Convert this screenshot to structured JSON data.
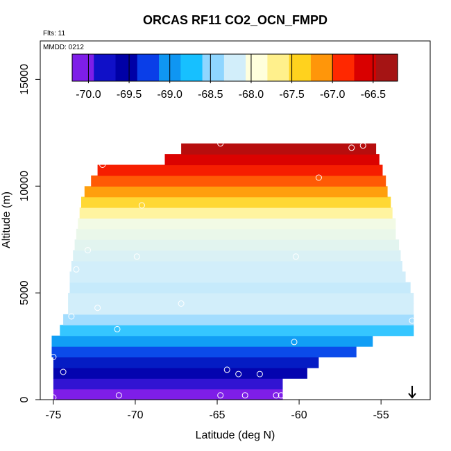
{
  "chart_data": {
    "type": "heatmap",
    "title": "ORCAS RF11 CO2_OCN_FMPD",
    "flights_label": "Flts: 11",
    "date_label": "MMDD: 0212",
    "xlabel": "Latitude (deg N)",
    "ylabel": "Altitude (m)",
    "xlim": [
      -75.8,
      -52.0
    ],
    "ylim": [
      0,
      16800
    ],
    "x_ticks": [
      -75,
      -70,
      -65,
      -60,
      -55
    ],
    "x_tick_labels": [
      "-75",
      "-70",
      "-65",
      "-60",
      "-55"
    ],
    "y_ticks": [
      0,
      5000,
      10000,
      15000
    ],
    "y_tick_labels": [
      "0",
      "5000",
      "10000",
      "15000"
    ],
    "colorbar": {
      "min": -70.2,
      "max": -66.2,
      "ticks": [
        -70.0,
        -69.5,
        -69.0,
        -68.5,
        -68.0,
        -67.5,
        -67.0,
        -66.5
      ],
      "tick_labels": [
        "-70.0",
        "-69.5",
        "-69.0",
        "-68.5",
        "-68.0",
        "-67.5",
        "-67.0",
        "-66.5"
      ],
      "colors": [
        "#7e1ee8",
        "#1010c8",
        "#0000a6",
        "#0a3ee8",
        "#0f96f2",
        "#17c0ff",
        "#8fd6ff",
        "#d2eefa",
        "#ffffdc",
        "#fff08c",
        "#ffd21e",
        "#ff960a",
        "#ff2800",
        "#d90000",
        "#a51414"
      ]
    },
    "profile": [
      {
        "alt": 0,
        "min_lat": -75.0,
        "max_lat": -61.0,
        "value": -70.2
      },
      {
        "alt": 500,
        "min_lat": -75.0,
        "max_lat": -61.0,
        "value": -70.0
      },
      {
        "alt": 1000,
        "min_lat": -75.0,
        "max_lat": -59.5,
        "value": -69.7
      },
      {
        "alt": 1500,
        "min_lat": -75.0,
        "max_lat": -58.8,
        "value": -69.5
      },
      {
        "alt": 2000,
        "min_lat": -75.1,
        "max_lat": -56.5,
        "value": -69.3
      },
      {
        "alt": 2500,
        "min_lat": -75.1,
        "max_lat": -55.5,
        "value": -69.0
      },
      {
        "alt": 3000,
        "min_lat": -74.6,
        "max_lat": -53.0,
        "value": -68.7
      },
      {
        "alt": 3500,
        "min_lat": -74.4,
        "max_lat": -53.0,
        "value": -68.4
      },
      {
        "alt": 4000,
        "min_lat": -74.1,
        "max_lat": -53.0,
        "value": -68.2
      },
      {
        "alt": 4500,
        "min_lat": -74.1,
        "max_lat": -53.0,
        "value": -68.2
      },
      {
        "alt": 5000,
        "min_lat": -74.0,
        "max_lat": -53.2,
        "value": -68.25
      },
      {
        "alt": 5500,
        "min_lat": -74.0,
        "max_lat": -53.5,
        "value": -68.2
      },
      {
        "alt": 6000,
        "min_lat": -73.9,
        "max_lat": -53.7,
        "value": -68.2
      },
      {
        "alt": 6500,
        "min_lat": -73.8,
        "max_lat": -53.8,
        "value": -68.15
      },
      {
        "alt": 7000,
        "min_lat": -73.7,
        "max_lat": -53.9,
        "value": -68.1
      },
      {
        "alt": 7500,
        "min_lat": -73.6,
        "max_lat": -54.1,
        "value": -68.05
      },
      {
        "alt": 8000,
        "min_lat": -73.5,
        "max_lat": -54.1,
        "value": -68.0
      },
      {
        "alt": 8500,
        "min_lat": -73.4,
        "max_lat": -54.3,
        "value": -67.7
      },
      {
        "alt": 9000,
        "min_lat": -73.3,
        "max_lat": -54.4,
        "value": -67.4
      },
      {
        "alt": 9500,
        "min_lat": -73.1,
        "max_lat": -54.6,
        "value": -67.1
      },
      {
        "alt": 10000,
        "min_lat": -72.7,
        "max_lat": -54.7,
        "value": -66.9
      },
      {
        "alt": 10500,
        "min_lat": -72.3,
        "max_lat": -54.9,
        "value": -66.7
      },
      {
        "alt": 11000,
        "min_lat": -68.2,
        "max_lat": -55.1,
        "value": -66.5
      },
      {
        "alt": 11500,
        "min_lat": -67.2,
        "max_lat": -55.3,
        "value": -66.3
      }
    ],
    "flight_points": [
      {
        "lat": -75.0,
        "alt": 100
      },
      {
        "lat": -75.0,
        "alt": 2000
      },
      {
        "lat": -74.4,
        "alt": 1300
      },
      {
        "lat": -73.9,
        "alt": 3900
      },
      {
        "lat": -72.3,
        "alt": 4300
      },
      {
        "lat": -71.1,
        "alt": 3300
      },
      {
        "lat": -73.6,
        "alt": 6100
      },
      {
        "lat": -72.9,
        "alt": 7000
      },
      {
        "lat": -71.0,
        "alt": 200
      },
      {
        "lat": -69.9,
        "alt": 6700
      },
      {
        "lat": -69.6,
        "alt": 9100
      },
      {
        "lat": -72.0,
        "alt": 11000
      },
      {
        "lat": -67.2,
        "alt": 4500
      },
      {
        "lat": -64.8,
        "alt": 12000
      },
      {
        "lat": -64.4,
        "alt": 1400
      },
      {
        "lat": -63.7,
        "alt": 1200
      },
      {
        "lat": -63.3,
        "alt": 200
      },
      {
        "lat": -62.4,
        "alt": 1200
      },
      {
        "lat": -61.4,
        "alt": 200
      },
      {
        "lat": -61.1,
        "alt": 200
      },
      {
        "lat": -64.8,
        "alt": 200
      },
      {
        "lat": -60.3,
        "alt": 2700
      },
      {
        "lat": -60.2,
        "alt": 6700
      },
      {
        "lat": -58.8,
        "alt": 10400
      },
      {
        "lat": -56.8,
        "alt": 11800
      },
      {
        "lat": -56.1,
        "alt": 11900
      },
      {
        "lat": -53.1,
        "alt": 3700
      },
      {
        "lat": -53.1,
        "alt": 2800
      }
    ],
    "arrow_marker": {
      "lat": -53.1,
      "direction": "down"
    }
  }
}
